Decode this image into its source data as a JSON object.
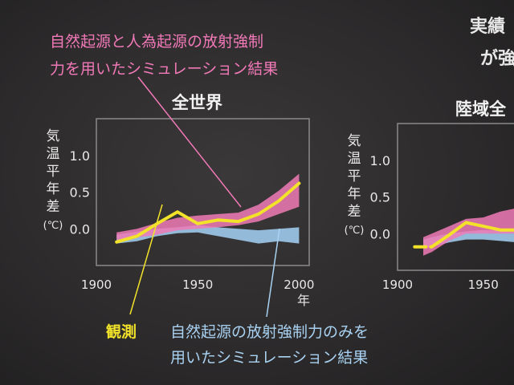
{
  "top_right_text": [
    "実績",
    "が強"
  ],
  "annotations": {
    "both_forcings": [
      "自然起源と人為起源の放射強制",
      "力を用いたシミュレーション結果"
    ],
    "observed": "観測",
    "natural_only": [
      "自然起源の放射強制力のみを",
      "用いたシミュレーション結果"
    ]
  },
  "colors": {
    "observed": "#f2e22a",
    "both_band": "#f07ab6",
    "natural_band": "#9ec9ec",
    "label_both": "#f279b8",
    "label_natural": "#a9d2f2",
    "axis_frame": "#8a8a8a",
    "text": "#e8e8e8"
  },
  "chart_data": [
    {
      "type": "line",
      "title": "全世界",
      "ylabel_chars": [
        "気",
        "温",
        "平",
        "年",
        "差",
        "(℃)"
      ],
      "xlabel": "年",
      "x_ticks": [
        "1900",
        "1950",
        "2000"
      ],
      "y_ticks": [
        "1.0",
        "0.5",
        "0.0"
      ],
      "xlim": [
        1900,
        2005
      ],
      "ylim": [
        -0.5,
        1.5
      ],
      "series": [
        {
          "name": "観測",
          "kind": "line",
          "x": [
            1910,
            1920,
            1930,
            1940,
            1950,
            1960,
            1970,
            1980,
            1990,
            2000
          ],
          "y": [
            -0.18,
            -0.1,
            0.07,
            0.23,
            0.07,
            0.12,
            0.1,
            0.2,
            0.38,
            0.62
          ]
        },
        {
          "name": "自然起源と人為起源の放射強制力を用いたシミュレーション結果",
          "kind": "band",
          "x": [
            1910,
            1920,
            1930,
            1940,
            1950,
            1960,
            1970,
            1980,
            1990,
            2000
          ],
          "low": [
            -0.15,
            -0.12,
            -0.08,
            -0.02,
            0.0,
            0.02,
            0.05,
            0.1,
            0.2,
            0.3
          ],
          "high": [
            -0.05,
            0.0,
            0.08,
            0.15,
            0.18,
            0.2,
            0.22,
            0.33,
            0.52,
            0.75
          ]
        },
        {
          "name": "自然起源の放射強制力のみを用いたシミュレーション結果",
          "kind": "band",
          "x": [
            1910,
            1920,
            1930,
            1940,
            1950,
            1960,
            1970,
            1980,
            1990,
            2000
          ],
          "low": [
            -0.2,
            -0.17,
            -0.1,
            -0.06,
            -0.05,
            -0.1,
            -0.15,
            -0.2,
            -0.17,
            -0.2
          ],
          "high": [
            -0.08,
            -0.04,
            0.0,
            0.02,
            0.05,
            0.02,
            0.0,
            -0.02,
            0.0,
            0.02
          ]
        }
      ]
    },
    {
      "type": "line",
      "title": "陸域全",
      "ylabel_chars": [
        "気",
        "温",
        "平",
        "年",
        "差",
        "(℃)"
      ],
      "x_ticks": [
        "1900",
        "1950"
      ],
      "y_ticks": [
        "1.0",
        "0.5",
        "0.0"
      ],
      "xlim": [
        1900,
        1975
      ],
      "ylim": [
        -0.5,
        1.5
      ],
      "series": [
        {
          "name": "観測",
          "kind": "line",
          "x": [
            1910,
            1920,
            1930,
            1940,
            1950,
            1960,
            1970
          ],
          "y": [
            -0.18,
            -0.18,
            -0.02,
            0.15,
            0.1,
            0.05,
            0.05
          ]
        },
        {
          "name": "自然起源と人為起源の放射強制力を用いたシミュレーション結果",
          "kind": "band",
          "x": [
            1915,
            1920,
            1930,
            1940,
            1950,
            1960,
            1970
          ],
          "low": [
            -0.3,
            -0.25,
            -0.1,
            0.0,
            0.0,
            0.0,
            0.0
          ],
          "high": [
            -0.05,
            0.0,
            0.1,
            0.2,
            0.22,
            0.3,
            0.35
          ]
        },
        {
          "name": "自然起源の放射強制力のみを用いたシミュレーション結果",
          "kind": "band",
          "x": [
            1915,
            1920,
            1930,
            1940,
            1950,
            1960,
            1970
          ],
          "low": [
            -0.2,
            -0.18,
            -0.12,
            -0.08,
            -0.08,
            -0.1,
            -0.12
          ],
          "high": [
            -0.08,
            -0.05,
            0.0,
            0.03,
            0.05,
            0.04,
            0.02
          ]
        }
      ]
    }
  ]
}
